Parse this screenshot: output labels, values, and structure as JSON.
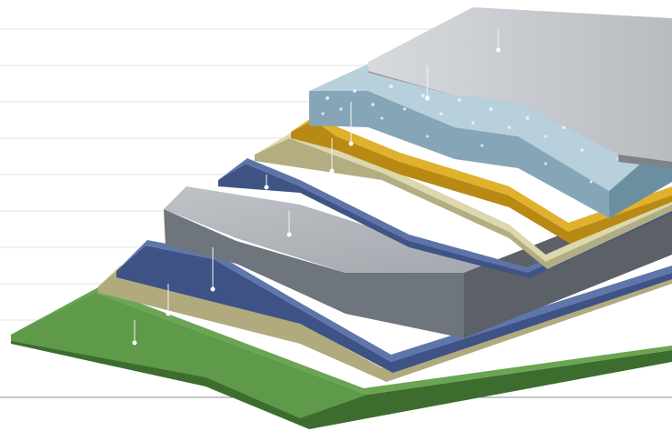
{
  "diagram": {
    "type": "exploded-layer-stack",
    "label_lines": 9,
    "layers": [
      {
        "id": "layer-1",
        "role": "top-surface",
        "top": "#c9ccd0",
        "side": "#9aa0a6",
        "edge": "#7d8389"
      },
      {
        "id": "layer-2",
        "role": "textured-board",
        "top": "#b7d0dc",
        "side": "#86a6b8",
        "edge": "#6c8ea1"
      },
      {
        "id": "layer-3",
        "role": "yellow-sheet",
        "top": "#e0b12c",
        "side": "#b88a14",
        "edge": "#9a720c"
      },
      {
        "id": "layer-4",
        "role": "beige-sheet",
        "top": "#ddd7ad",
        "side": "#b3ad82",
        "edge": "#98926a"
      },
      {
        "id": "layer-5",
        "role": "blue-sheet",
        "top": "#5e74a8",
        "side": "#3f5485",
        "edge": "#2f416b"
      },
      {
        "id": "layer-6",
        "role": "gray-board",
        "top": "#aeb3b9",
        "side": "#6f757c",
        "edge": "#5c6168"
      },
      {
        "id": "layer-7",
        "role": "blue-sheet-lower",
        "top": "#5f76ab",
        "side": "#3e5286",
        "edge": "#2e406a"
      },
      {
        "id": "layer-8",
        "role": "beige-sheet-lower",
        "top": "#ddd5a8",
        "side": "#b1aa7f",
        "edge": "#958f66"
      },
      {
        "id": "layer-9",
        "role": "green-base",
        "top": "#5f9a4a",
        "side": "#3d6d2e",
        "edge": "#2f5722"
      }
    ]
  }
}
